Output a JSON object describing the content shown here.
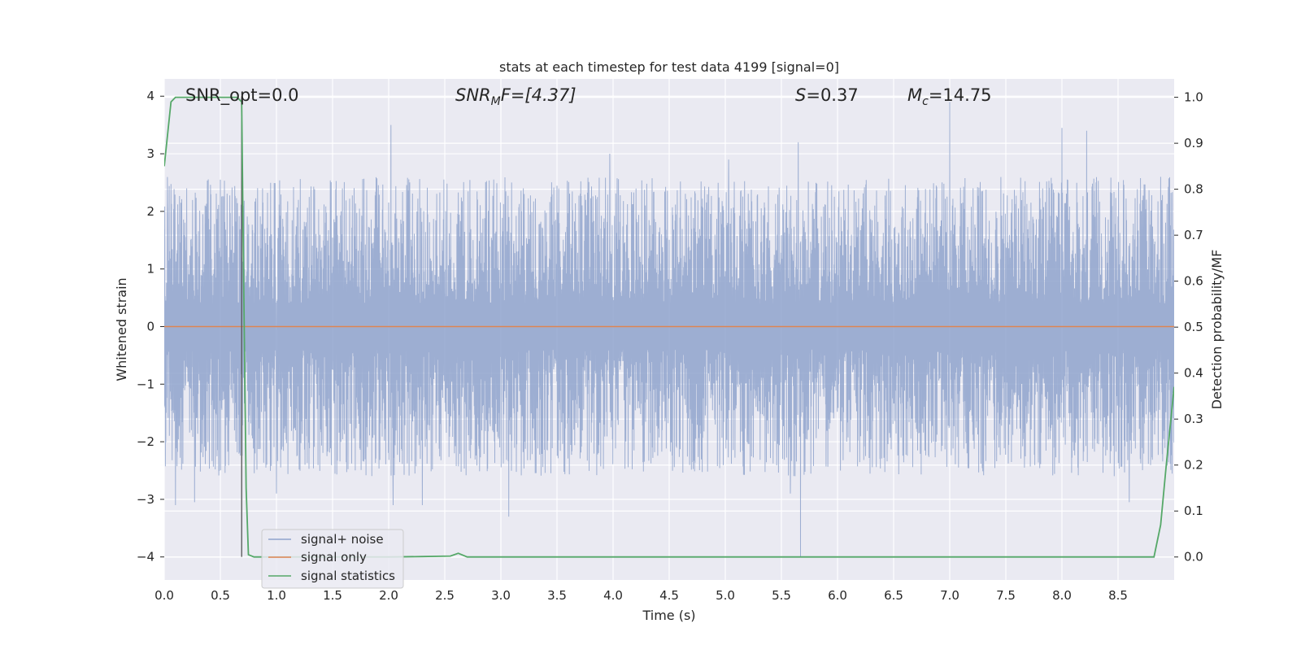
{
  "chart_data": {
    "type": "line",
    "title": "stats at each timestep for test data 4199 [signal=0]",
    "xlabel": "Time (s)",
    "ylabel_left": "Whitened strain",
    "ylabel_right": "Detection probability/MF",
    "xlim": [
      0.0,
      9.0
    ],
    "ylim_left": [
      -4.4,
      4.3
    ],
    "ylim_right": [
      -0.05,
      1.04
    ],
    "xticks": [
      "0.0",
      "0.5",
      "1.0",
      "1.5",
      "2.0",
      "2.5",
      "3.0",
      "3.5",
      "4.0",
      "4.5",
      "5.0",
      "5.5",
      "6.0",
      "6.5",
      "7.0",
      "7.5",
      "8.0",
      "8.5"
    ],
    "yticks_left": [
      "4",
      "3",
      "2",
      "1",
      "0",
      "−1",
      "−2",
      "−3",
      "−4"
    ],
    "yticks_right": [
      "1.0",
      "0.9",
      "0.8",
      "0.7",
      "0.6",
      "0.5",
      "0.4",
      "0.3",
      "0.2",
      "0.1",
      "0.0"
    ],
    "grid": true,
    "legend_position": "lower-left",
    "annotations": {
      "snr_opt": "SNR_opt=0.0",
      "snr_mf_sym": "SNR",
      "snr_mf_sub": "M",
      "snr_mf_rest": "F=[4.37]",
      "s_sym": "S",
      "s_val": "=0.37",
      "mc_sym": "M",
      "mc_sub": "c",
      "mc_val": "=14.75"
    },
    "vertical_marker_x": 0.69,
    "series": [
      {
        "name": "signal+ noise",
        "color": "#8fa3cc",
        "axis": "left",
        "description_range": [
          -4.0,
          3.9
        ],
        "peaks": [
          [
            0.03,
            2.15
          ],
          [
            0.1,
            -3.1
          ],
          [
            0.2,
            2.4
          ],
          [
            0.27,
            -3.05
          ],
          [
            0.5,
            2.55
          ],
          [
            1.0,
            -2.9
          ],
          [
            2.02,
            3.5
          ],
          [
            2.04,
            -3.1
          ],
          [
            2.3,
            -3.1
          ],
          [
            3.07,
            -3.3
          ],
          [
            3.97,
            3.0
          ],
          [
            5.03,
            2.9
          ],
          [
            5.58,
            -2.9
          ],
          [
            5.65,
            3.2
          ],
          [
            5.67,
            -4.0
          ],
          [
            7.0,
            3.9
          ],
          [
            8.0,
            3.45
          ],
          [
            8.22,
            3.4
          ],
          [
            8.6,
            -3.05
          ],
          [
            8.88,
            2.6
          ]
        ]
      },
      {
        "name": "signal only",
        "color": "#dd8452",
        "axis": "left",
        "x": [
          0.0,
          9.0
        ],
        "y": [
          0.0,
          0.0
        ]
      },
      {
        "name": "signal statistics",
        "color": "#55a868",
        "axis": "right",
        "x": [
          0.0,
          0.06,
          0.1,
          0.2,
          0.4,
          0.6,
          0.65,
          0.69,
          0.71,
          0.73,
          0.75,
          0.8,
          1.0,
          1.5,
          2.0,
          2.3,
          2.55,
          2.62,
          2.7,
          3.0,
          4.0,
          5.0,
          6.0,
          7.0,
          8.0,
          8.5,
          8.82,
          8.88,
          8.93,
          9.0
        ],
        "y": [
          0.85,
          0.99,
          1.0,
          1.0,
          1.0,
          1.0,
          1.0,
          0.99,
          0.55,
          0.15,
          0.005,
          0.0,
          0.0,
          0.0,
          0.0,
          0.001,
          0.002,
          0.008,
          0.0,
          0.0,
          0.0,
          0.0,
          0.0,
          0.0,
          0.0,
          0.0,
          0.0,
          0.07,
          0.2,
          0.37
        ]
      }
    ]
  }
}
